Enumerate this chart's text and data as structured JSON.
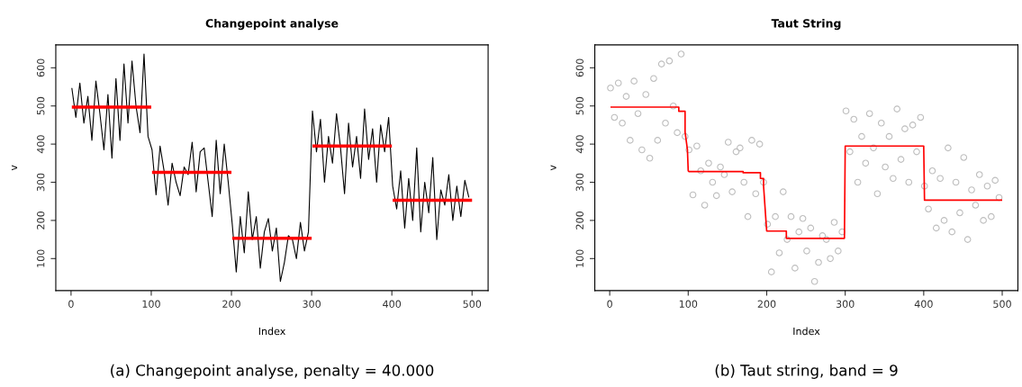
{
  "chart_data": [
    {
      "type": "line",
      "title": "Changepoint analyse",
      "xlabel": "Index",
      "ylabel": "v",
      "xlim": [
        -19,
        520
      ],
      "xticks": [
        0,
        100,
        200,
        300,
        400,
        500
      ],
      "ylim": [
        16,
        660
      ],
      "yticks": [
        100,
        200,
        300,
        400,
        500,
        600
      ],
      "grid": false,
      "legend": false,
      "annotations": [
        "(a) Changepoint analyse, penalty = 40.000"
      ],
      "series": [
        {
          "color": "#000000",
          "x": [
            1,
            6,
            11,
            16,
            21,
            26,
            31,
            36,
            41,
            46,
            51,
            56,
            61,
            66,
            71,
            76,
            81,
            86,
            91,
            96,
            101,
            106,
            111,
            116,
            121,
            126,
            131,
            136,
            141,
            146,
            151,
            156,
            161,
            166,
            171,
            176,
            181,
            186,
            191,
            196,
            201,
            206,
            211,
            216,
            221,
            226,
            231,
            236,
            241,
            246,
            251,
            256,
            261,
            266,
            271,
            276,
            281,
            286,
            291,
            296,
            301,
            306,
            311,
            316,
            321,
            326,
            331,
            336,
            341,
            346,
            351,
            356,
            361,
            366,
            371,
            376,
            381,
            386,
            391,
            396,
            401,
            406,
            411,
            416,
            421,
            426,
            431,
            436,
            441,
            446,
            451,
            456,
            461,
            466,
            471,
            476,
            481,
            486,
            491,
            496
          ],
          "values": [
            547,
            470,
            560,
            455,
            525,
            410,
            565,
            480,
            385,
            530,
            363,
            572,
            410,
            610,
            455,
            618,
            500,
            430,
            636,
            420,
            385,
            267,
            395,
            330,
            240,
            350,
            300,
            265,
            340,
            320,
            405,
            275,
            380,
            390,
            300,
            210,
            410,
            270,
            400,
            300,
            190,
            65,
            210,
            115,
            275,
            150,
            210,
            75,
            170,
            205,
            120,
            180,
            40,
            90,
            160,
            150,
            100,
            195,
            120,
            170,
            487,
            380,
            465,
            300,
            420,
            350,
            480,
            390,
            270,
            455,
            340,
            420,
            310,
            492,
            360,
            440,
            300,
            450,
            380,
            470,
            290,
            230,
            330,
            180,
            310,
            200,
            390,
            170,
            300,
            220,
            365,
            150,
            280,
            240,
            320,
            200,
            290,
            210,
            305,
            260
          ]
        },
        {
          "color": "#ff0000",
          "x": [
            1,
            100,
            100.5,
            101,
            200,
            200.5,
            201,
            300,
            300.5,
            301,
            400,
            400.5,
            401,
            500
          ],
          "values": [
            497,
            497,
            null,
            326,
            326,
            null,
            153,
            153,
            null,
            395,
            395,
            null,
            253,
            253
          ]
        }
      ]
    },
    {
      "type": "line",
      "title": "Taut String",
      "xlabel": "Index",
      "ylabel": "v",
      "xlim": [
        -19,
        520
      ],
      "xticks": [
        0,
        100,
        200,
        300,
        400,
        500
      ],
      "ylim": [
        16,
        660
      ],
      "yticks": [
        100,
        200,
        300,
        400,
        500,
        600
      ],
      "grid": false,
      "legend": false,
      "annotations": [
        "(b) Taut string, band = 9"
      ],
      "series": [
        {
          "type": "scatter",
          "marker": "circle",
          "color": "#bebebe",
          "x": [
            1,
            6,
            11,
            16,
            21,
            26,
            31,
            36,
            41,
            46,
            51,
            56,
            61,
            66,
            71,
            76,
            81,
            86,
            91,
            96,
            101,
            106,
            111,
            116,
            121,
            126,
            131,
            136,
            141,
            146,
            151,
            156,
            161,
            166,
            171,
            176,
            181,
            186,
            191,
            196,
            201,
            206,
            211,
            216,
            221,
            226,
            231,
            236,
            241,
            246,
            251,
            256,
            261,
            266,
            271,
            276,
            281,
            286,
            291,
            296,
            301,
            306,
            311,
            316,
            321,
            326,
            331,
            336,
            341,
            346,
            351,
            356,
            361,
            366,
            371,
            376,
            381,
            386,
            391,
            396,
            401,
            406,
            411,
            416,
            421,
            426,
            431,
            436,
            441,
            446,
            451,
            456,
            461,
            466,
            471,
            476,
            481,
            486,
            491,
            496
          ],
          "values": [
            547,
            470,
            560,
            455,
            525,
            410,
            565,
            480,
            385,
            530,
            363,
            572,
            410,
            610,
            455,
            618,
            500,
            430,
            636,
            420,
            385,
            267,
            395,
            330,
            240,
            350,
            300,
            265,
            340,
            320,
            405,
            275,
            380,
            390,
            300,
            210,
            410,
            270,
            400,
            300,
            190,
            65,
            210,
            115,
            275,
            150,
            210,
            75,
            170,
            205,
            120,
            180,
            40,
            90,
            160,
            150,
            100,
            195,
            120,
            170,
            487,
            380,
            465,
            300,
            420,
            350,
            480,
            390,
            270,
            455,
            340,
            420,
            310,
            492,
            360,
            440,
            300,
            450,
            380,
            470,
            290,
            230,
            330,
            180,
            310,
            200,
            390,
            170,
            300,
            220,
            365,
            150,
            280,
            240,
            320,
            200,
            290,
            210,
            305,
            260
          ]
        },
        {
          "color": "#ff0000",
          "x": [
            1,
            88,
            88,
            96,
            96,
            99,
            100,
            101,
            170,
            170,
            192,
            192,
            196,
            196,
            199,
            200,
            225,
            225,
            299,
            300,
            400,
            401,
            500
          ],
          "values": [
            497,
            497,
            486,
            486,
            432,
            385,
            330,
            328,
            328,
            325,
            325,
            310,
            310,
            290,
            200,
            172,
            172,
            153,
            153,
            395,
            395,
            253,
            253
          ]
        }
      ]
    }
  ]
}
